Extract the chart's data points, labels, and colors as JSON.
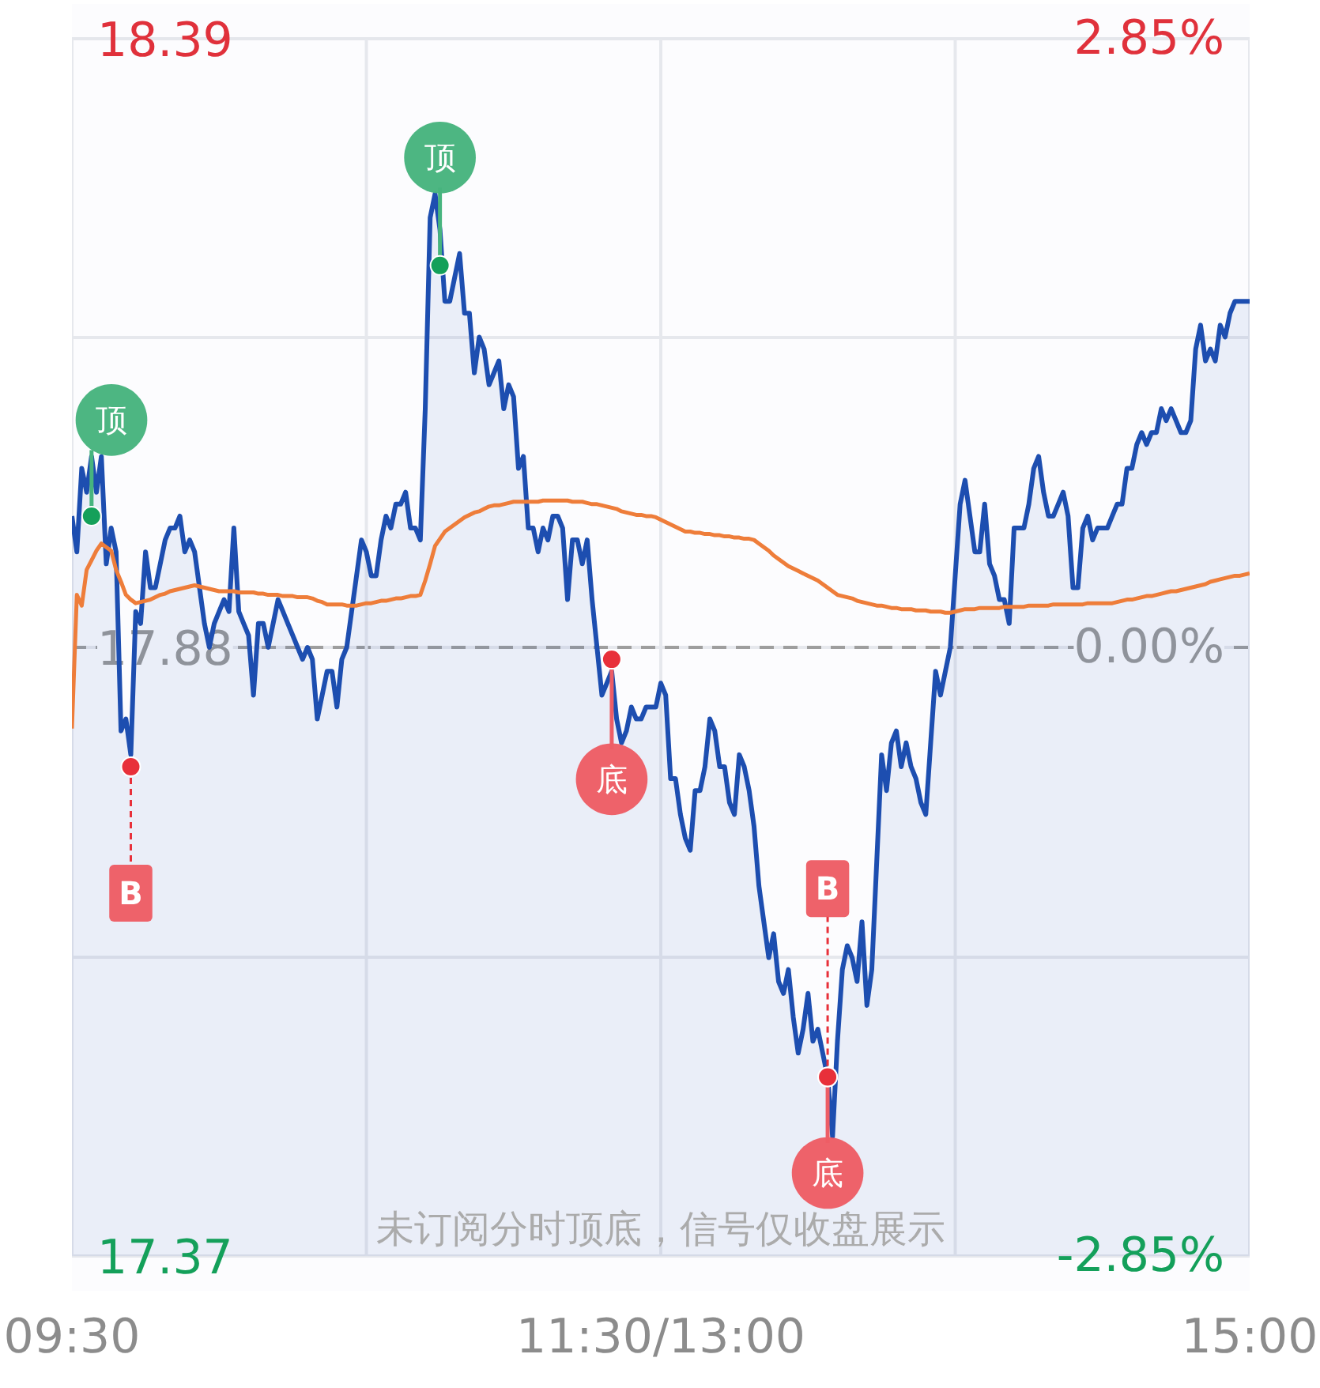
{
  "chart_data": {
    "type": "line",
    "categories": [
      "09:30",
      null,
      null,
      null,
      null,
      null,
      null,
      null,
      null,
      null,
      null,
      null,
      null,
      null,
      null,
      null,
      null,
      null,
      null,
      null,
      null,
      null,
      null,
      null,
      null,
      null,
      null,
      null,
      null,
      null,
      null,
      null,
      null,
      null,
      null,
      null,
      null,
      null,
      null,
      null,
      null,
      null,
      null,
      null,
      null,
      null,
      null,
      null,
      null,
      null,
      null,
      null,
      null,
      null,
      null,
      null,
      null,
      null,
      null,
      null,
      null,
      null,
      null,
      null,
      null,
      null,
      null,
      null,
      null,
      null,
      null,
      null,
      null,
      null,
      null,
      null,
      null,
      null,
      null,
      null,
      null,
      null,
      null,
      null,
      null,
      null,
      null,
      null,
      null,
      null,
      null,
      null,
      null,
      null,
      null,
      null,
      null,
      null,
      null,
      null,
      null,
      null,
      null,
      null,
      null,
      null,
      null,
      null,
      null,
      null,
      null,
      null,
      null,
      null,
      null,
      null,
      null,
      null,
      null,
      null,
      "11:30/13:00",
      null,
      null,
      null,
      null,
      null,
      null,
      null,
      null,
      null,
      null,
      null,
      null,
      null,
      null,
      null,
      null,
      null,
      null,
      null,
      null,
      null,
      null,
      null,
      null,
      null,
      null,
      null,
      null,
      null,
      null,
      null,
      null,
      null,
      null,
      null,
      null,
      null,
      null,
      null,
      null,
      null,
      null,
      null,
      null,
      null,
      null,
      null,
      null,
      null,
      null,
      null,
      null,
      null,
      null,
      null,
      null,
      null,
      null,
      null,
      null,
      null,
      null,
      null,
      null,
      null,
      null,
      null,
      null,
      null,
      null,
      null,
      null,
      null,
      null,
      null,
      null,
      null,
      null,
      null,
      null,
      null,
      null,
      null,
      null,
      null,
      null,
      null,
      null,
      null,
      null,
      null,
      null,
      null,
      null,
      null,
      null,
      null,
      null,
      null,
      null,
      null,
      null,
      null,
      null,
      null,
      null,
      null,
      null,
      null,
      null,
      null,
      null,
      null,
      null,
      null,
      null,
      null,
      null,
      null,
      "15:00"
    ],
    "ylim": [
      17.37,
      18.39
    ],
    "yticks": [
      18.39,
      {
        "value": 18.14,
        "label": null
      },
      17.88,
      {
        "value": 17.62,
        "label": null
      },
      17.37
    ],
    "y2lim": [
      -2.85,
      2.85
    ],
    "y2ticks": [
      {
        "value": 2.85,
        "label": "2.85%"
      },
      {
        "value": 0,
        "label": "0.00%"
      },
      {
        "value": -2.85,
        "label": "-2.85%"
      }
    ],
    "grid": true,
    "ref_lines": [
      {
        "axis": "y",
        "value": 17.88,
        "color": "#9e9e9e",
        "line_style": "dashed"
      }
    ],
    "series": [
      {
        "type": "area",
        "color": "#1d4eb0",
        "values": [
          17.99,
          17.96,
          18.03,
          18.01,
          18.04,
          18.01,
          18.04,
          17.95,
          17.98,
          17.96,
          17.81,
          17.82,
          17.79,
          17.91,
          17.9,
          17.96,
          17.93,
          17.93,
          17.95,
          17.97,
          17.98,
          17.98,
          17.99,
          17.96,
          17.97,
          17.96,
          17.93,
          17.9,
          17.88,
          17.9,
          17.91,
          17.92,
          17.91,
          17.98,
          17.91,
          17.9,
          17.89,
          17.84,
          17.9,
          17.9,
          17.88,
          17.9,
          17.92,
          17.91,
          17.9,
          17.89,
          17.88,
          17.87,
          17.88,
          17.87,
          17.82,
          17.84,
          17.86,
          17.86,
          17.83,
          17.87,
          17.88,
          17.91,
          17.94,
          17.97,
          17.96,
          17.94,
          17.94,
          17.97,
          17.99,
          17.98,
          18.0,
          18.0,
          18.01,
          17.98,
          17.98,
          17.97,
          18.08,
          18.24,
          18.26,
          18.23,
          18.17,
          18.17,
          18.19,
          18.21,
          18.16,
          18.16,
          18.11,
          18.14,
          18.13,
          18.1,
          18.11,
          18.12,
          18.08,
          18.1,
          18.09,
          18.03,
          18.04,
          17.98,
          17.98,
          17.96,
          17.98,
          17.97,
          17.99,
          17.99,
          17.98,
          17.92,
          17.97,
          17.97,
          17.95,
          17.97,
          17.92,
          17.88,
          17.84,
          17.85,
          17.86,
          17.82,
          17.8,
          17.81,
          17.83,
          17.82,
          17.82,
          17.83,
          17.83,
          17.83,
          17.85,
          17.84,
          17.77,
          17.77,
          17.74,
          17.72,
          17.71,
          17.76,
          17.76,
          17.78,
          17.82,
          17.81,
          17.78,
          17.78,
          17.75,
          17.74,
          17.79,
          17.78,
          17.76,
          17.73,
          17.68,
          17.65,
          17.62,
          17.64,
          17.6,
          17.59,
          17.61,
          17.57,
          17.54,
          17.56,
          17.59,
          17.55,
          17.56,
          17.54,
          17.52,
          17.47,
          17.55,
          17.61,
          17.63,
          17.62,
          17.6,
          17.65,
          17.58,
          17.61,
          17.7,
          17.79,
          17.76,
          17.8,
          17.81,
          17.78,
          17.8,
          17.78,
          17.77,
          17.75,
          17.74,
          17.8,
          17.86,
          17.84,
          17.86,
          17.88,
          17.94,
          18.0,
          18.02,
          17.99,
          17.96,
          17.96,
          18.0,
          17.95,
          17.94,
          17.92,
          17.92,
          17.9,
          17.98,
          17.98,
          17.98,
          18.0,
          18.03,
          18.04,
          18.01,
          17.99,
          17.99,
          18.0,
          18.01,
          17.99,
          17.93,
          17.93,
          17.98,
          17.99,
          17.97,
          17.98,
          17.98,
          17.98,
          17.99,
          18.0,
          18.0,
          18.03,
          18.03,
          18.05,
          18.06,
          18.05,
          18.06,
          18.06,
          18.08,
          18.07,
          18.08,
          18.07,
          18.06,
          18.06,
          18.07,
          18.13,
          18.15,
          18.12,
          18.13,
          18.12,
          18.15,
          18.14,
          18.16,
          18.17,
          18.17,
          18.17,
          18.17
        ]
      },
      {
        "color": "#ee7d3a",
        "values": [
          17.812,
          17.924,
          17.915,
          17.945,
          17.953,
          17.961,
          17.967,
          17.964,
          17.961,
          17.945,
          17.935,
          17.924,
          17.92,
          17.917,
          17.918,
          17.919,
          17.92,
          17.922,
          17.924,
          17.925,
          17.927,
          17.928,
          17.929,
          17.93,
          17.931,
          17.932,
          17.931,
          17.93,
          17.929,
          17.928,
          17.927,
          17.927,
          17.927,
          17.927,
          17.926,
          17.926,
          17.926,
          17.926,
          17.925,
          17.925,
          17.924,
          17.924,
          17.924,
          17.923,
          17.923,
          17.923,
          17.922,
          17.922,
          17.922,
          17.921,
          17.919,
          17.918,
          17.916,
          17.916,
          17.916,
          17.916,
          17.915,
          17.915,
          17.915,
          17.916,
          17.917,
          17.917,
          17.918,
          17.919,
          17.919,
          17.92,
          17.921,
          17.921,
          17.922,
          17.923,
          17.923,
          17.924,
          17.936,
          17.95,
          17.965,
          17.971,
          17.977,
          17.98,
          17.983,
          17.986,
          17.989,
          17.991,
          17.993,
          17.994,
          17.996,
          17.998,
          17.999,
          17.999,
          18.0,
          18.001,
          18.002,
          18.002,
          18.002,
          18.002,
          18.002,
          18.002,
          18.003,
          18.003,
          18.003,
          18.003,
          18.003,
          18.003,
          18.002,
          18.002,
          18.002,
          18.001,
          18.0,
          18.0,
          17.999,
          17.998,
          17.997,
          17.996,
          17.994,
          17.993,
          17.992,
          17.991,
          17.991,
          17.99,
          17.99,
          17.989,
          17.987,
          17.985,
          17.983,
          17.981,
          17.979,
          17.977,
          17.977,
          17.976,
          17.976,
          17.975,
          17.975,
          17.974,
          17.974,
          17.973,
          17.973,
          17.972,
          17.972,
          17.971,
          17.971,
          17.97,
          17.967,
          17.964,
          17.961,
          17.957,
          17.954,
          17.951,
          17.948,
          17.946,
          17.944,
          17.942,
          17.94,
          17.938,
          17.936,
          17.933,
          17.93,
          17.927,
          17.924,
          17.923,
          17.922,
          17.921,
          17.919,
          17.918,
          17.917,
          17.916,
          17.915,
          17.915,
          17.914,
          17.913,
          17.913,
          17.912,
          17.912,
          17.912,
          17.911,
          17.911,
          17.911,
          17.91,
          17.91,
          17.91,
          17.909,
          17.909,
          17.91,
          17.911,
          17.912,
          17.912,
          17.912,
          17.913,
          17.913,
          17.913,
          17.913,
          17.913,
          17.914,
          17.914,
          17.914,
          17.914,
          17.914,
          17.915,
          17.915,
          17.915,
          17.915,
          17.915,
          17.916,
          17.916,
          17.916,
          17.916,
          17.916,
          17.916,
          17.916,
          17.917,
          17.917,
          17.917,
          17.917,
          17.917,
          17.917,
          17.918,
          17.919,
          17.92,
          17.92,
          17.921,
          17.922,
          17.923,
          17.923,
          17.924,
          17.925,
          17.926,
          17.927,
          17.927,
          17.928,
          17.929,
          17.93,
          17.931,
          17.932,
          17.933,
          17.935,
          17.936,
          17.937,
          17.938,
          17.939,
          17.94,
          17.94,
          17.941,
          17.942
        ]
      },
      {
        "type": "scatter",
        "marker": "circle",
        "color": "#14a05a",
        "values": [
          null,
          null,
          null,
          null,
          17.99,
          null,
          null,
          null,
          null,
          null,
          null,
          null,
          null,
          null,
          null,
          null,
          null,
          null,
          null,
          null,
          null,
          null,
          null,
          null,
          null,
          null,
          null,
          null,
          null,
          null,
          null,
          null,
          null,
          null,
          null,
          null,
          null,
          null,
          null,
          null,
          null,
          null,
          null,
          null,
          null,
          null,
          null,
          null,
          null,
          null,
          null,
          null,
          null,
          null,
          null,
          null,
          null,
          null,
          null,
          null,
          null,
          null,
          null,
          null,
          null,
          null,
          null,
          null,
          null,
          null,
          null,
          null,
          null,
          null,
          null,
          18.2,
          null,
          null,
          null,
          null,
          null,
          null,
          null,
          null,
          null,
          null,
          null,
          null,
          null,
          null,
          null,
          null,
          null,
          null,
          null,
          null,
          null,
          null,
          null,
          null,
          null,
          null,
          null,
          null,
          null,
          null,
          null,
          null,
          null,
          null,
          null,
          null,
          null,
          null,
          null,
          null,
          null,
          null,
          null,
          null,
          null,
          null,
          null,
          null,
          null,
          null,
          null,
          null,
          null,
          null,
          null,
          null,
          null,
          null,
          null,
          null,
          null,
          null,
          null,
          null,
          null,
          null,
          null,
          null,
          null,
          null,
          null,
          null,
          null,
          null,
          null,
          null,
          null,
          null,
          null,
          null,
          null,
          null,
          null,
          null,
          null,
          null,
          null,
          null,
          null,
          null,
          null,
          null,
          null,
          null,
          null,
          null,
          null,
          null,
          null,
          null,
          null,
          null,
          null,
          null,
          null,
          null,
          null,
          null,
          null,
          null,
          null,
          null,
          null,
          null,
          null,
          null,
          null,
          null,
          null,
          null,
          null,
          null,
          null,
          null,
          null,
          null,
          null,
          null,
          null,
          null,
          null,
          null,
          null,
          null,
          null,
          null,
          null,
          null,
          null,
          null,
          null,
          null,
          null,
          null,
          null,
          null,
          null,
          null,
          null,
          null,
          null,
          null,
          null,
          null,
          null,
          null,
          null,
          null,
          null,
          null,
          null,
          null,
          null,
          null,
          null
        ],
        "value_labels": [
          null,
          null,
          null,
          null,
          "顶",
          null,
          null,
          null,
          null,
          null,
          null,
          null,
          null,
          null,
          null,
          null,
          null,
          null,
          null,
          null,
          null,
          null,
          null,
          null,
          null,
          null,
          null,
          null,
          null,
          null,
          null,
          null,
          null,
          null,
          null,
          null,
          null,
          null,
          null,
          null,
          null,
          null,
          null,
          null,
          null,
          null,
          null,
          null,
          null,
          null,
          null,
          null,
          null,
          null,
          null,
          null,
          null,
          null,
          null,
          null,
          null,
          null,
          null,
          null,
          null,
          null,
          null,
          null,
          null,
          null,
          null,
          null,
          null,
          null,
          null,
          "顶",
          null,
          null,
          null,
          null,
          null,
          null,
          null,
          null,
          null,
          null,
          null,
          null,
          null,
          null,
          null,
          null,
          null,
          null,
          null,
          null,
          null,
          null,
          null,
          null,
          null,
          null,
          null,
          null,
          null,
          null,
          null,
          null,
          null,
          null,
          null,
          null,
          null,
          null,
          null,
          null,
          null,
          null,
          null,
          null,
          null,
          null,
          null,
          null,
          null,
          null,
          null,
          null,
          null,
          null,
          null,
          null,
          null,
          null,
          null,
          null,
          null,
          null,
          null,
          null,
          null,
          null,
          null,
          null,
          null,
          null,
          null,
          null,
          null,
          null,
          null,
          null,
          null,
          null,
          null,
          null,
          null,
          null,
          null,
          null,
          null,
          null,
          null,
          null,
          null,
          null,
          null,
          null,
          null,
          null,
          null,
          null,
          null,
          null,
          null,
          null,
          null,
          null,
          null,
          null,
          null,
          null,
          null,
          null,
          null,
          null,
          null,
          null,
          null,
          null,
          null,
          null,
          null,
          null,
          null,
          null,
          null,
          null,
          null,
          null,
          null,
          null,
          null,
          null,
          null,
          null,
          null,
          null,
          null,
          null,
          null,
          null,
          null,
          null,
          null,
          null,
          null,
          null,
          null,
          null,
          null,
          null,
          null,
          null,
          null,
          null,
          null,
          null,
          null,
          null,
          null,
          null,
          null,
          null,
          null,
          null,
          null,
          null,
          null,
          null,
          null
        ]
      },
      {
        "type": "scatter",
        "marker": "circle",
        "color": "#e8303a",
        "values": [
          null,
          null,
          null,
          null,
          null,
          null,
          null,
          null,
          null,
          null,
          null,
          null,
          null,
          null,
          null,
          null,
          null,
          null,
          null,
          null,
          null,
          null,
          null,
          null,
          null,
          null,
          null,
          null,
          null,
          null,
          null,
          null,
          null,
          null,
          null,
          null,
          null,
          null,
          null,
          null,
          null,
          null,
          null,
          null,
          null,
          null,
          null,
          null,
          null,
          null,
          null,
          null,
          null,
          null,
          null,
          null,
          null,
          null,
          null,
          null,
          null,
          null,
          null,
          null,
          null,
          null,
          null,
          null,
          null,
          null,
          null,
          null,
          null,
          null,
          null,
          null,
          null,
          null,
          null,
          null,
          null,
          null,
          null,
          null,
          null,
          null,
          null,
          null,
          null,
          null,
          null,
          null,
          null,
          null,
          null,
          null,
          null,
          null,
          null,
          null,
          null,
          null,
          null,
          null,
          null,
          null,
          null,
          null,
          null,
          null,
          17.87,
          null,
          null,
          null,
          null,
          null,
          null,
          null,
          null,
          null,
          null,
          null,
          null,
          null,
          null,
          null,
          null,
          null,
          null,
          null,
          null,
          null,
          null,
          null,
          null,
          null,
          null,
          null,
          null,
          null,
          null,
          null,
          null,
          null,
          null,
          null,
          null,
          null,
          null,
          null,
          null,
          null,
          null,
          null,
          17.52,
          null,
          null,
          null,
          null,
          null,
          null,
          null,
          null,
          null,
          null,
          null,
          null,
          null,
          null,
          null,
          null,
          null,
          null,
          null,
          null,
          null,
          null,
          null,
          null,
          null,
          null,
          null,
          null,
          null,
          null,
          null,
          null,
          null,
          null,
          null,
          null,
          null,
          null,
          null,
          null,
          null,
          null,
          null,
          null,
          null,
          null,
          null,
          null,
          null,
          null,
          null,
          null,
          null,
          null,
          null,
          null,
          null,
          null,
          null,
          null,
          null,
          null,
          null,
          null,
          null,
          null,
          null,
          null,
          null,
          null,
          null,
          null,
          null,
          null,
          null,
          null,
          null,
          null,
          null,
          null,
          null,
          null,
          null,
          null,
          null,
          null
        ],
        "value_labels": [
          null,
          null,
          null,
          null,
          null,
          null,
          null,
          null,
          null,
          null,
          null,
          null,
          null,
          null,
          null,
          null,
          null,
          null,
          null,
          null,
          null,
          null,
          null,
          null,
          null,
          null,
          null,
          null,
          null,
          null,
          null,
          null,
          null,
          null,
          null,
          null,
          null,
          null,
          null,
          null,
          null,
          null,
          null,
          null,
          null,
          null,
          null,
          null,
          null,
          null,
          null,
          null,
          null,
          null,
          null,
          null,
          null,
          null,
          null,
          null,
          null,
          null,
          null,
          null,
          null,
          null,
          null,
          null,
          null,
          null,
          null,
          null,
          null,
          null,
          null,
          null,
          null,
          null,
          null,
          null,
          null,
          null,
          null,
          null,
          null,
          null,
          null,
          null,
          null,
          null,
          null,
          null,
          null,
          null,
          null,
          null,
          null,
          null,
          null,
          null,
          null,
          null,
          null,
          null,
          null,
          null,
          null,
          null,
          null,
          null,
          "底",
          null,
          null,
          null,
          null,
          null,
          null,
          null,
          null,
          null,
          null,
          null,
          null,
          null,
          null,
          null,
          null,
          null,
          null,
          null,
          null,
          null,
          null,
          null,
          null,
          null,
          null,
          null,
          null,
          null,
          null,
          null,
          null,
          null,
          null,
          null,
          null,
          null,
          null,
          null,
          null,
          null,
          null,
          null,
          "底",
          null,
          null,
          null,
          null,
          null,
          null,
          null,
          null,
          null,
          null,
          null,
          null,
          null,
          null,
          null,
          null,
          null,
          null,
          null,
          null,
          null,
          null,
          null,
          null,
          null,
          null,
          null,
          null,
          null,
          null,
          null,
          null,
          null,
          null,
          null,
          null,
          null,
          null,
          null,
          null,
          null,
          null,
          null,
          null,
          null,
          null,
          null,
          null,
          null,
          null,
          null,
          null,
          null,
          null,
          null,
          null,
          null,
          null,
          null,
          null,
          null,
          null,
          null,
          null,
          null,
          null,
          null,
          null,
          null,
          null,
          null,
          null,
          null,
          null,
          null,
          null,
          null,
          null,
          null,
          null,
          null,
          null,
          null,
          null,
          null,
          null
        ]
      },
      {
        "type": "scatter",
        "marker": "circle",
        "color": "#e8303a",
        "values": [
          null,
          null,
          null,
          null,
          null,
          null,
          null,
          null,
          null,
          null,
          null,
          null,
          17.78,
          null,
          null,
          null,
          null,
          null,
          null,
          null,
          null,
          null,
          null,
          null,
          null,
          null,
          null,
          null,
          null,
          null,
          null,
          null,
          null,
          null,
          null,
          null,
          null,
          null,
          null,
          null,
          null,
          null,
          null,
          null,
          null,
          null,
          null,
          null,
          null,
          null,
          null,
          null,
          null,
          null,
          null,
          null,
          null,
          null,
          null,
          null,
          null,
          null,
          null,
          null,
          null,
          null,
          null,
          null,
          null,
          null,
          null,
          null,
          null,
          null,
          null,
          null,
          null,
          null,
          null,
          null,
          null,
          null,
          null,
          null,
          null,
          null,
          null,
          null,
          null,
          null,
          null,
          null,
          null,
          null,
          null,
          null,
          null,
          null,
          null,
          null,
          null,
          null,
          null,
          null,
          null,
          null,
          null,
          null,
          null,
          null,
          null,
          null,
          null,
          null,
          null,
          null,
          null,
          null,
          null,
          null,
          null,
          null,
          null,
          null,
          null,
          null,
          null,
          null,
          null,
          null,
          null,
          null,
          null,
          null,
          null,
          null,
          null,
          null,
          null,
          null,
          null,
          null,
          null,
          null,
          null,
          null,
          null,
          null,
          null,
          null,
          null,
          null,
          null,
          null,
          17.52,
          null,
          null,
          null,
          null,
          null,
          null,
          null,
          null,
          null,
          null,
          null,
          null,
          null,
          null,
          null,
          null,
          null,
          null,
          null,
          null,
          null,
          null,
          null,
          null,
          null,
          null,
          null,
          null,
          null,
          null,
          null,
          null,
          null,
          null,
          null,
          null,
          null,
          null,
          null,
          null,
          null,
          null,
          null,
          null,
          null,
          null,
          null,
          null,
          null,
          null,
          null,
          null,
          null,
          null,
          null,
          null,
          null,
          null,
          null,
          null,
          null,
          null,
          null,
          null,
          null,
          null,
          null,
          null,
          null,
          null,
          null,
          null,
          null,
          null,
          null,
          null,
          null,
          null,
          null,
          null,
          null,
          null,
          null,
          null,
          null,
          null
        ],
        "value_labels": [
          null,
          null,
          null,
          null,
          null,
          null,
          null,
          null,
          null,
          null,
          null,
          null,
          "B",
          null,
          null,
          null,
          null,
          null,
          null,
          null,
          null,
          null,
          null,
          null,
          null,
          null,
          null,
          null,
          null,
          null,
          null,
          null,
          null,
          null,
          null,
          null,
          null,
          null,
          null,
          null,
          null,
          null,
          null,
          null,
          null,
          null,
          null,
          null,
          null,
          null,
          null,
          null,
          null,
          null,
          null,
          null,
          null,
          null,
          null,
          null,
          null,
          null,
          null,
          null,
          null,
          null,
          null,
          null,
          null,
          null,
          null,
          null,
          null,
          null,
          null,
          null,
          null,
          null,
          null,
          null,
          null,
          null,
          null,
          null,
          null,
          null,
          null,
          null,
          null,
          null,
          null,
          null,
          null,
          null,
          null,
          null,
          null,
          null,
          null,
          null,
          null,
          null,
          null,
          null,
          null,
          null,
          null,
          null,
          null,
          null,
          null,
          null,
          null,
          null,
          null,
          null,
          null,
          null,
          null,
          null,
          null,
          null,
          null,
          null,
          null,
          null,
          null,
          null,
          null,
          null,
          null,
          null,
          null,
          null,
          null,
          null,
          null,
          null,
          null,
          null,
          null,
          null,
          null,
          null,
          null,
          null,
          null,
          null,
          null,
          null,
          null,
          null,
          null,
          null,
          "B",
          null,
          null,
          null,
          null,
          null,
          null,
          null,
          null,
          null,
          null,
          null,
          null,
          null,
          null,
          null,
          null,
          null,
          null,
          null,
          null,
          null,
          null,
          null,
          null,
          null,
          null,
          null,
          null,
          null,
          null,
          null,
          null,
          null,
          null,
          null,
          null,
          null,
          null,
          null,
          null,
          null,
          null,
          null,
          null,
          null,
          null,
          null,
          null,
          null,
          null,
          null,
          null,
          null,
          null,
          null,
          null,
          null,
          null,
          null,
          null,
          null,
          null,
          null,
          null,
          null,
          null,
          null,
          null,
          null,
          null,
          null,
          null,
          null,
          null,
          null,
          null,
          null,
          null,
          null,
          null,
          null,
          null,
          null,
          null,
          null,
          null
        ]
      }
    ],
    "annotations": [
      "未订阅分时顶底，信号仅收盘展示"
    ]
  }
}
